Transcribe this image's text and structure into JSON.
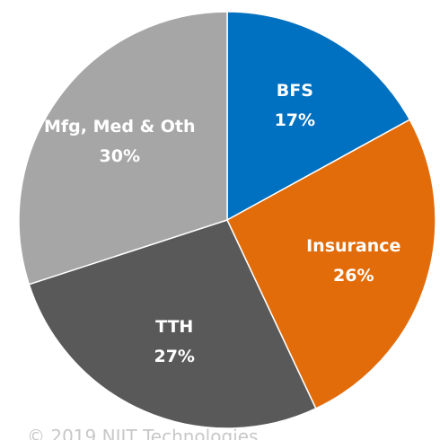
{
  "chart_data": {
    "type": "pie",
    "categories": [
      "BFS",
      "Insurance",
      "TTH",
      "Mfg, Med & Oth"
    ],
    "values": [
      17,
      26,
      27,
      30
    ],
    "value_labels": [
      "17%",
      "26%",
      "27%",
      "30%"
    ],
    "colors": [
      "#0070c0",
      "#e36c0a",
      "#595959",
      "#a6a6a6"
    ],
    "footer": "© 2019 NIIT Technologies"
  }
}
